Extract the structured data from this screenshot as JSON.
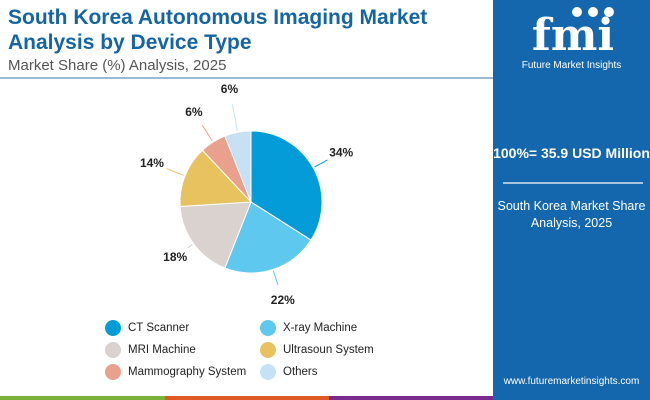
{
  "title": "South Korea Autonomous Imaging Market Analysis by Device Type",
  "subtitle": "Market Share (%) Analysis, 2025",
  "panel": {
    "brand": "Future Market Insights",
    "total": "100%= 35.9 USD Million",
    "subtitle": "South Korea Market Share Analysis, 2025",
    "url": "www.futuremarketinsights.com",
    "logo_text": "fmi"
  },
  "chart_data": {
    "type": "pie",
    "title": "South Korea Autonomous Imaging Market Analysis by Device Type",
    "categories": [
      "CT Scanner",
      "X-ray Machine",
      "MRI Machine",
      "Ultrasoun System",
      "Mammography System",
      "Others"
    ],
    "values": [
      34,
      22,
      18,
      14,
      6,
      6
    ],
    "labels": [
      "34%",
      "22%",
      "18%",
      "14%",
      "6%",
      "6%"
    ],
    "colors": [
      "#049cd8",
      "#5fc8ee",
      "#d9d2ce",
      "#e9c260",
      "#e9a08c",
      "#c5e1f3"
    ],
    "legend_position": "bottom"
  }
}
